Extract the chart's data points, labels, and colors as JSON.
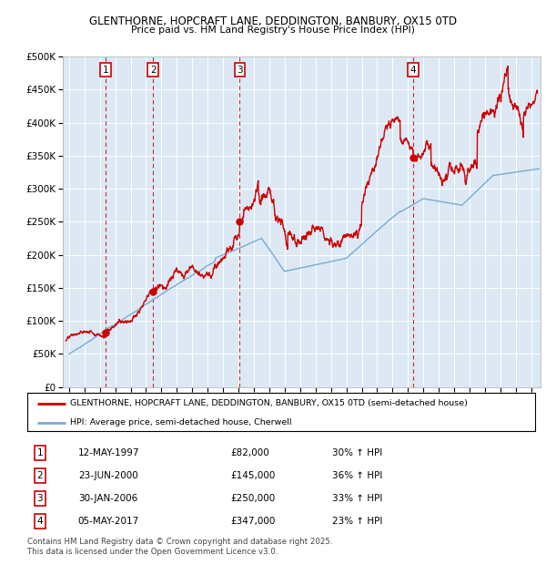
{
  "title1": "GLENTHORNE, HOPCRAFT LANE, DEDDINGTON, BANBURY, OX15 0TD",
  "title2": "Price paid vs. HM Land Registry's House Price Index (HPI)",
  "red_line_label": "GLENTHORNE, HOPCRAFT LANE, DEDDINGTON, BANBURY, OX15 0TD (semi-detached house)",
  "blue_line_label": "HPI: Average price, semi-detached house, Cherwell",
  "footer": "Contains HM Land Registry data © Crown copyright and database right 2025.\nThis data is licensed under the Open Government Licence v3.0.",
  "transactions": [
    {
      "num": 1,
      "date": "12-MAY-1997",
      "price": "82,000",
      "hpi_pct": "30%",
      "year": 1997.36
    },
    {
      "num": 2,
      "date": "23-JUN-2000",
      "price": "145,000",
      "hpi_pct": "36%",
      "year": 2000.47
    },
    {
      "num": 3,
      "date": "30-JAN-2006",
      "price": "250,000",
      "hpi_pct": "33%",
      "year": 2006.08
    },
    {
      "num": 4,
      "date": "05-MAY-2017",
      "price": "347,000",
      "hpi_pct": "23%",
      "year": 2017.34
    }
  ],
  "ylim": [
    0,
    500000
  ],
  "yticks": [
    0,
    50000,
    100000,
    150000,
    200000,
    250000,
    300000,
    350000,
    400000,
    450000,
    500000
  ],
  "ytick_labels": [
    "£0",
    "£50K",
    "£100K",
    "£150K",
    "£200K",
    "£250K",
    "£300K",
    "£350K",
    "£400K",
    "£450K",
    "£500K"
  ],
  "xlim_start": 1994.6,
  "xlim_end": 2025.6,
  "red_color": "#cc0000",
  "blue_color": "#7aaad0",
  "plot_bg": "#dce9f5",
  "grid_color": "#ffffff"
}
